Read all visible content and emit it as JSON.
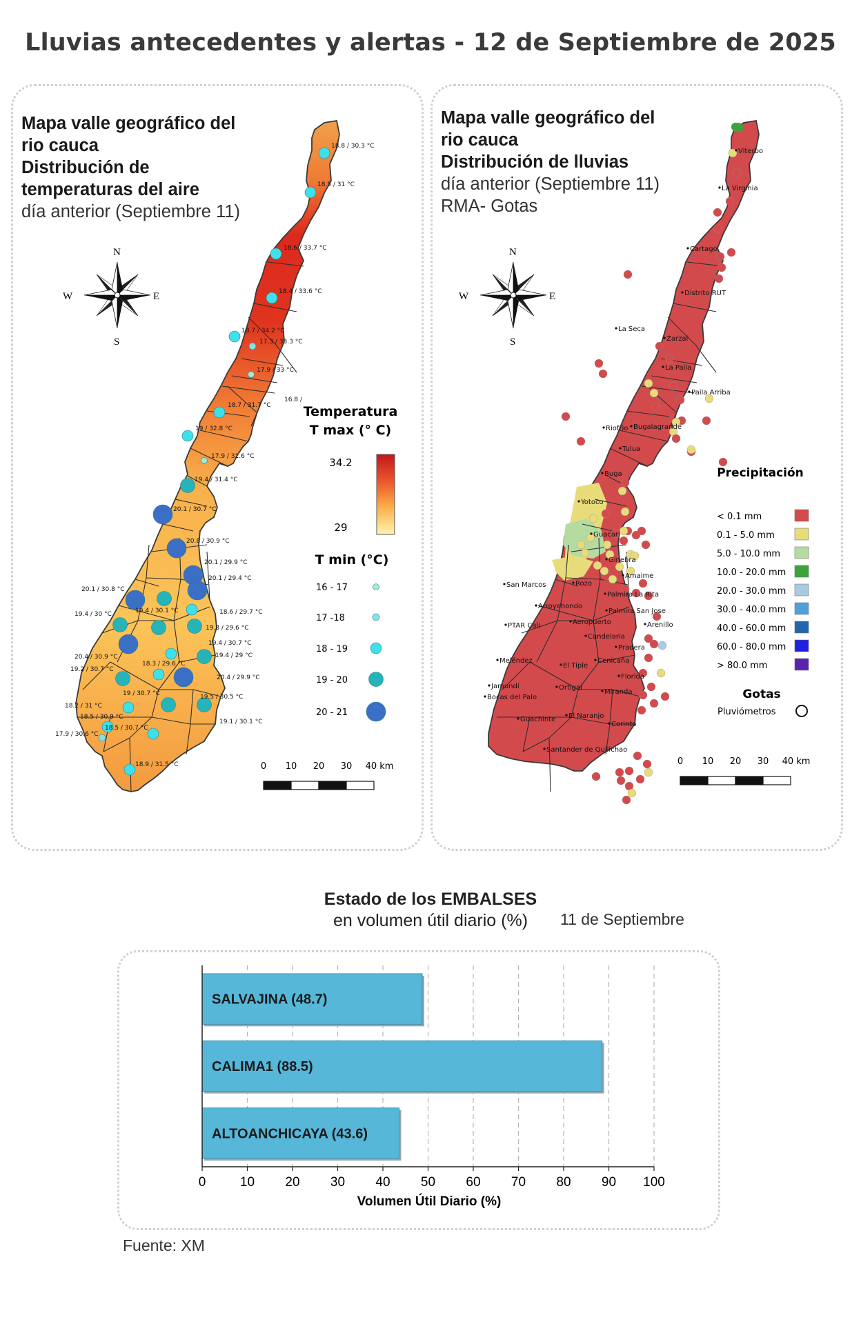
{
  "page": {
    "title": "Lluvias antecedentes y alertas - 12 de Septiembre de 2025",
    "source": "Fuente: XM"
  },
  "left_panel": {
    "title_line1": "Mapa valle geográfico del",
    "title_line2": "rio cauca",
    "title_line3": "Distribución de",
    "title_line4": "temperaturas del aire",
    "title_line5": "día anterior (Septiembre 11)",
    "compass": {
      "n": "N",
      "s": "S",
      "e": "E",
      "w": "W"
    },
    "legend_tmax_title1": "Temperatura",
    "legend_tmax_title2": "T max (° C)",
    "legend_tmax_max": "34.2",
    "legend_tmax_min": "29",
    "legend_tmin_title": "T min (°C)",
    "legend_tmin_classes": [
      "16 - 17",
      "17 -18",
      "18 - 19",
      "19 - 20",
      "20 - 21"
    ],
    "scale_labels": [
      "0",
      "10",
      "20",
      "30",
      "40 km"
    ],
    "station_labels": [
      "18.8 / 30.3 °C",
      "18.5 / 31 °C",
      "18.6 / 33.7 °C",
      "18.4 / 33.6 °C",
      "18.7 / 34.2 °C",
      "17.3 / 33.3 °C",
      "17.9 / 33 °C",
      "16.8 /",
      "18.7 / 31.7 °C",
      "19 / 32.8 °C",
      "17.9 / 31.6 °C",
      "19.4 / 31.4 °C",
      "20.1 / 30.7 °C",
      "20.8 / 30.9 °C",
      "20.1 / 29.9 °C",
      "20.1 / 29.4 °C",
      "20.1 / 30.8 °C",
      "19.4 / 30 °C",
      "19.4 / 30.1 °C",
      "18.6 / 29.7 °C",
      "19.8 / 29.6 °C",
      "19.4 / 30.7 °C",
      "20.4 / 30.9 °C",
      "19.2 / 30.7 °C",
      "18.3 / 29.6 °C",
      "19.4 / 29 °C",
      "20.4 / 29.9 °C",
      "19 / 30.7 °C",
      "19.5 / 30.5 °C",
      "18.2 / 31 °C",
      "18.5 / 30.9 °C",
      "18.5 / 30.7 °C",
      "19.1 / 30.1 °C",
      "17.9 / 30.6 °C",
      "18.9 / 31.5 °C"
    ]
  },
  "right_panel": {
    "title_line1": "Mapa valle geográfico del",
    "title_line2": "rio cauca",
    "title_line3": "Distribución de lluvias",
    "title_line4": "día anterior (Septiembre 11)",
    "title_line5": "RMA- Gotas",
    "compass": {
      "n": "N",
      "s": "S",
      "e": "E",
      "w": "W"
    },
    "legend_title": "Precipitación",
    "legend_classes": [
      {
        "label": "< 0.1 mm",
        "color": "#d34a4d"
      },
      {
        "label": "0.1 - 5.0 mm",
        "color": "#e8dc7a"
      },
      {
        "label": "5.0 - 10.0 mm",
        "color": "#b5dca0"
      },
      {
        "label": "10.0 - 20.0 mm",
        "color": "#3aa33a"
      },
      {
        "label": "20.0 - 30.0 mm",
        "color": "#a8cbe2"
      },
      {
        "label": "30.0 - 40.0 mm",
        "color": "#4f9fdc"
      },
      {
        "label": "40.0 - 60.0 mm",
        "color": "#2166ac"
      },
      {
        "label": "60.0 - 80.0 mm",
        "color": "#2020e0"
      },
      {
        "label": "> 80.0 mm",
        "color": "#5a22b0"
      }
    ],
    "legend_gotas_title": "Gotas",
    "legend_gotas_label": "Pluviómetros",
    "scale_labels": [
      "0",
      "10",
      "20",
      "30",
      "40 km"
    ],
    "town_labels": [
      "Viterbo",
      "La Virginia",
      "Cartago",
      "Distrito RUT",
      "La Seca",
      "Zarzal",
      "La Paila",
      "Paila Arriba",
      "Bugalagrande",
      "Riofrio",
      "Tulua",
      "Buga",
      "Yotoco",
      "Guacari",
      "Ginebra",
      "Amaime",
      "San Marcos",
      "Rozo",
      "Palmira La Rita",
      "Arroyohondo",
      "Palmira San Jose",
      "Aeropuerto",
      "Arenillo",
      "PTAR Cali",
      "Candelaria",
      "Pradera",
      "Meléndez",
      "El Tiple",
      "Cenicaña",
      "Jamundí",
      "Bocas del Palo",
      "Florida",
      "Ortigal",
      "Miranda",
      "Guachinte",
      "El Naranjo",
      "Corinto",
      "Santander de Quilichao"
    ]
  },
  "reservoirs": {
    "title_line1": "Estado de los EMBALSES",
    "title_line2": "en volumen útil diario (%)",
    "date": "11 de Septiembre",
    "colors": {
      "bar": "#56b7d9",
      "bar_border": "#3b8fb0"
    }
  },
  "chart_data": {
    "type": "bar",
    "orientation": "horizontal",
    "categories": [
      "SALVAJINA",
      "CALIMA1",
      "ALTOANCHICAYA"
    ],
    "values": [
      48.7,
      88.5,
      43.6
    ],
    "bar_labels": [
      "SALVAJINA (48.7)",
      "CALIMA1 (88.5)",
      "ALTOANCHICAYA (43.6)"
    ],
    "xlabel": "Volumen Útil Diario (%)",
    "xlim": [
      0,
      100
    ],
    "xticks": [
      "0",
      "10",
      "20",
      "30",
      "40",
      "50",
      "60",
      "70",
      "80",
      "90",
      "100"
    ],
    "grid": "vertical dashed"
  }
}
